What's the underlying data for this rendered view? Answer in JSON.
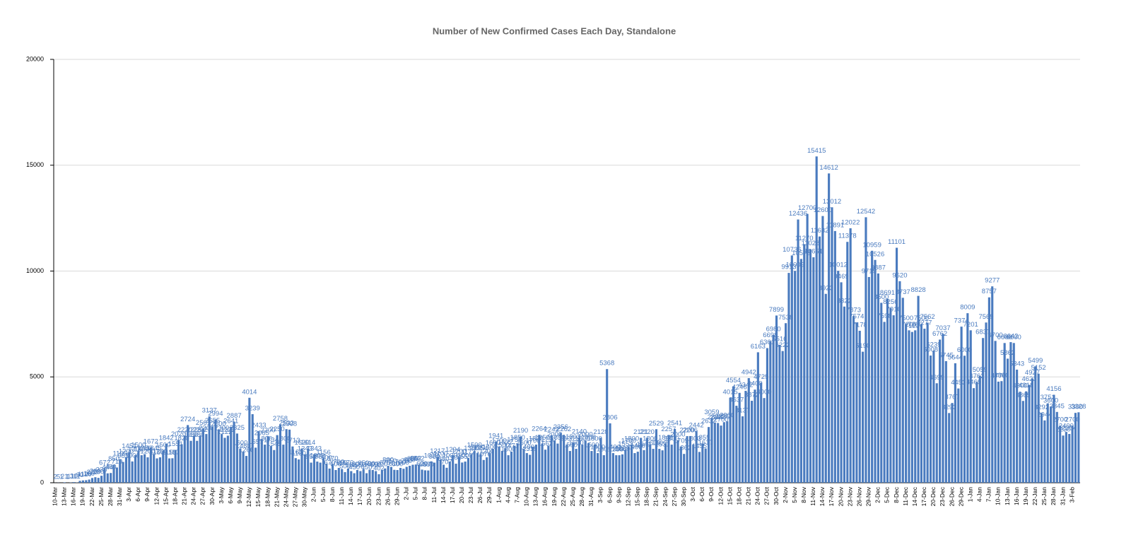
{
  "chart_data": {
    "type": "bar",
    "title": "Number of New Confirmed Cases Each Day, Standalone",
    "color": "#4a7bbf",
    "grid": true,
    "ylim": [
      0,
      20000
    ],
    "yticks": [
      0,
      5000,
      10000,
      15000,
      20000
    ],
    "categories": [
      "10-Mar",
      null,
      null,
      "13-Mar",
      null,
      null,
      "16-Mar",
      null,
      null,
      "19-Mar",
      null,
      null,
      "22-Mar",
      null,
      null,
      "25-Mar",
      null,
      null,
      "28-Mar",
      null,
      null,
      "31-Mar",
      null,
      null,
      "3-Apr",
      null,
      null,
      "6-Apr",
      null,
      null,
      "9-Apr",
      null,
      null,
      "12-Apr",
      null,
      null,
      "15-Apr",
      null,
      null,
      "18-Apr",
      null,
      null,
      "21-Apr",
      null,
      null,
      "24-Apr",
      null,
      null,
      "27-Apr",
      null,
      null,
      "30-Apr",
      null,
      null,
      "3-May",
      null,
      null,
      "6-May",
      null,
      null,
      "9-May",
      null,
      null,
      "12-May",
      null,
      null,
      "15-May",
      null,
      null,
      "18-May",
      null,
      null,
      "21-May",
      null,
      null,
      "24-May",
      null,
      null,
      "27-May",
      null,
      null,
      "30-May",
      null,
      null,
      "2-Jun",
      null,
      null,
      "5-Jun",
      null,
      null,
      "8-Jun",
      null,
      null,
      "11-Jun",
      null,
      null,
      "14-Jun",
      null,
      null,
      "17-Jun",
      null,
      null,
      "20-Jun",
      null,
      null,
      "23-Jun",
      null,
      null,
      "26-Jun",
      null,
      null,
      "29-Jun",
      null,
      null,
      "2-Jul",
      null,
      null,
      "5-Jul",
      null,
      null,
      "8-Jul",
      null,
      null,
      "11-Jul",
      null,
      null,
      "14-Jul",
      null,
      null,
      "17-Jul",
      null,
      null,
      "20-Jul",
      null,
      null,
      "23-Jul",
      null,
      null,
      "26-Jul",
      null,
      null,
      "29-Jul",
      null,
      null,
      "1-Aug",
      null,
      null,
      "4-Aug",
      null,
      null,
      "7-Aug",
      null,
      null,
      "10-Aug",
      null,
      null,
      "13-Aug",
      null,
      null,
      "16-Aug",
      null,
      null,
      "19-Aug",
      null,
      null,
      "22-Aug",
      null,
      null,
      "25-Aug",
      null,
      null,
      "28-Aug",
      null,
      null,
      "31-Aug",
      null,
      null,
      "3-Sep",
      null,
      null,
      "6-Sep",
      null,
      null,
      "9-Sep",
      null,
      null,
      "12-Sep",
      null,
      null,
      "15-Sep",
      null,
      null,
      "18-Sep",
      null,
      null,
      "21-Sep",
      null,
      null,
      "24-Sep",
      null,
      null,
      "27-Sep",
      null,
      null,
      "30-Sep",
      null,
      null,
      "3-Oct",
      null,
      null,
      "6-Oct",
      null,
      null,
      "9-Oct",
      null,
      null,
      "12-Oct",
      null,
      null,
      "15-Oct",
      null,
      null,
      "18-Oct",
      null,
      null,
      "21-Oct",
      null,
      null,
      "24-Oct",
      null,
      null,
      "27-Oct",
      null,
      null,
      "30-Oct",
      null,
      null,
      "2-Nov",
      null,
      null,
      "5-Nov",
      null,
      null,
      "8-Nov",
      null,
      null,
      "11-Nov",
      null,
      null,
      "14-Nov",
      null,
      null,
      "17-Nov",
      null,
      null,
      "20-Nov",
      null,
      null,
      "23-Nov",
      null,
      null,
      "26-Nov",
      null,
      null,
      "29-Nov",
      null,
      null,
      "2-Dec",
      null,
      null,
      "5-Dec",
      null,
      null,
      "8-Dec",
      null,
      null,
      "11-Dec",
      null,
      null,
      "14-Dec",
      null,
      null,
      "17-Dec",
      null,
      null,
      "20-Dec",
      null,
      null,
      "23-Dec",
      null,
      null,
      "26-Dec",
      null,
      null,
      "29-Dec",
      null,
      null,
      "1-Jan",
      null,
      null,
      "4-Jan",
      null,
      null,
      "7-Jan",
      null,
      null,
      "10-Jan",
      null,
      null,
      "13-Jan",
      null,
      null,
      "16-Jan",
      null,
      null,
      "19-Jan",
      null,
      null,
      "22-Jan",
      null,
      null,
      "25-Jan",
      null,
      null,
      "28-Jan",
      null,
      null,
      "31-Jan",
      null,
      null,
      "3-Feb",
      null,
      null
    ],
    "values": [
      2,
      5,
      1,
      21,
      1,
      11,
      30,
      11,
      90,
      110,
      120,
      150,
      223,
      260,
      230,
      330,
      672,
      444,
      460,
      850,
      719,
      1105,
      983,
      1200,
      1451,
      1006,
      1300,
      1500,
      1300,
      1350,
      1200,
      1672,
      1345,
      1150,
      1200,
      1500,
      1842,
      1150,
      1157,
      1551,
      2020,
      1820,
      2220,
      2724,
      1980,
      2225,
      1980,
      2222,
      2561,
      2300,
      3137,
      2655,
      2994,
      2500,
      2300,
      2122,
      2222,
      2641,
      2887,
      2325,
      1600,
      1460,
      1266,
      4014,
      3239,
      1657,
      2433,
      2065,
      1800,
      2200,
      1734,
      1545,
      2250,
      2758,
      1800,
      2532,
      2508,
      1713,
      1162,
      1100,
      1620,
      1343,
      1614,
      950,
      1343,
      1000,
      950,
      1156,
      900,
      670,
      870,
      600,
      700,
      650,
      500,
      670,
      550,
      450,
      600,
      550,
      650,
      450,
      620,
      600,
      550,
      402,
      600,
      675,
      800,
      750,
      610,
      600,
      700,
      660,
      750,
      800,
      850,
      862,
      862,
      620,
      587,
      580,
      1010,
      950,
      1217,
      1100,
      850,
      707,
      1000,
      1294,
      900,
      1200,
      955,
      1000,
      1172,
      1350,
      1500,
      1400,
      1354,
      1076,
      1200,
      1400,
      1600,
      1941,
      1700,
      1500,
      1632,
      1300,
      1471,
      1750,
      1850,
      2190,
      1600,
      1400,
      1319,
      1700,
      1800,
      2264,
      1850,
      1562,
      1750,
      2242,
      2000,
      1850,
      2356,
      2262,
      1800,
      1500,
      1893,
      1600,
      2140,
      1800,
      2000,
      1868,
      1500,
      1800,
      1400,
      2128,
      1301,
      5368,
      2806,
      1400,
      1300,
      1300,
      1339,
      1553,
      1700,
      1800,
      1400,
      1466,
      2121,
      1541,
      2120,
      1800,
      1600,
      2529,
      1600,
      1531,
      1848,
      2257,
      1800,
      2541,
      2000,
      1709,
      1362,
      2200,
      2206,
      1800,
      2442,
      1455,
      1855,
      1617,
      2632,
      3059,
      2828,
      2822,
      2700,
      2862,
      2900,
      4015,
      4554,
      3637,
      4246,
      3137,
      4342,
      4942,
      3872,
      4400,
      6163,
      4729,
      4000,
      6361,
      6698,
      6980,
      7899,
      6516,
      6222,
      7538,
      9913,
      10736,
      10009,
      12436,
      10573,
      11270,
      12700,
      11028,
      10651,
      15415,
      11632,
      12600,
      8923,
      14612,
      13012,
      11891,
      10012,
      9469,
      8322,
      11378,
      12022,
      7873,
      7574,
      7178,
      6190,
      12542,
      9719,
      10959,
      10526,
      9887,
      8500,
      7598,
      8691,
      8256,
      7910,
      11101,
      9520,
      8737,
      7500,
      7200,
      7123,
      7200,
      8828,
      7500,
      7277,
      7562,
      6008,
      6239,
      4699,
      6762,
      7037,
      5745,
      3293,
      3767,
      5644,
      4453,
      7374,
      6000,
      8009,
      7201,
      4469,
      4762,
      5059,
      6837,
      7569,
      8757,
      9277,
      6700,
      4776,
      4800,
      6600,
      5862,
      6642,
      6600,
      5343,
      4300,
      3865,
      4318,
      4623,
      4927,
      5499,
      5152,
      3292,
      2944,
      3751,
      3600,
      4156,
      3345,
      2700,
      2230,
      2400,
      2304,
      2700,
      3300,
      3328
    ]
  }
}
